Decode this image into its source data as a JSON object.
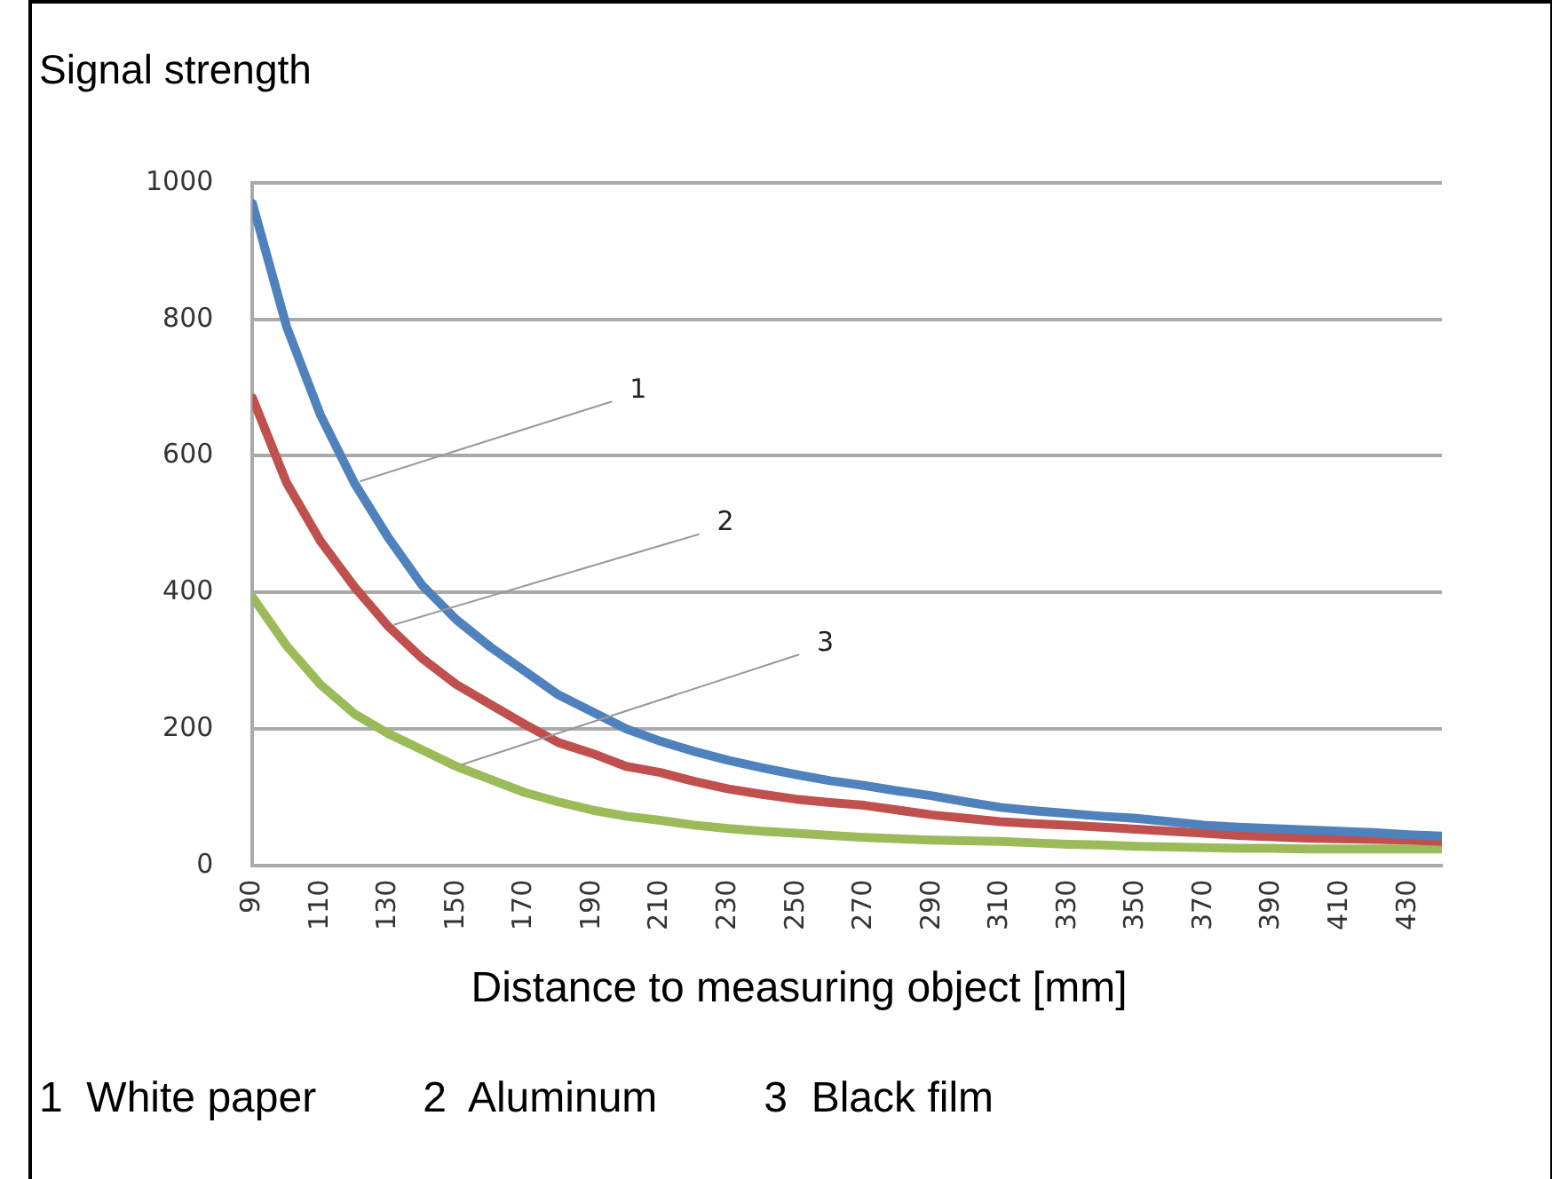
{
  "chart_data": {
    "type": "line",
    "ylabel": "Signal strength",
    "xlabel": "Distance to measuring object [mm]",
    "x": [
      90,
      100,
      110,
      120,
      130,
      140,
      150,
      160,
      170,
      180,
      190,
      200,
      210,
      220,
      230,
      240,
      250,
      260,
      270,
      280,
      290,
      300,
      310,
      320,
      330,
      340,
      350,
      360,
      370,
      380,
      390,
      400,
      410,
      420,
      430,
      440
    ],
    "series": [
      {
        "color": "#4f81bd",
        "values": [
          970,
          790,
          660,
          560,
          480,
          410,
          360,
          320,
          285,
          250,
          225,
          200,
          182,
          167,
          154,
          143,
          133,
          124,
          117,
          109,
          102,
          93,
          85,
          80,
          76,
          72,
          69,
          64,
          59,
          56,
          54,
          52,
          50,
          48,
          45,
          43
        ]
      },
      {
        "color": "#c0504d",
        "values": [
          685,
          561,
          475,
          408,
          350,
          303,
          265,
          236,
          207,
          180,
          164,
          145,
          136,
          123,
          112,
          104,
          97,
          92,
          88,
          81,
          74,
          69,
          64,
          61,
          59,
          56,
          53,
          50,
          47,
          44,
          42,
          40,
          39,
          38,
          37,
          35
        ]
      },
      {
        "color": "#9bbb59",
        "values": [
          393,
          322,
          265,
          222,
          193,
          169,
          145,
          126,
          107,
          93,
          81,
          72,
          66,
          59,
          54,
          50,
          47,
          44,
          41,
          39,
          37,
          36,
          35,
          33,
          31,
          30,
          28,
          27,
          26,
          25,
          25,
          24,
          24,
          24,
          24,
          24
        ]
      }
    ],
    "annotations": [
      {
        "text": "1",
        "x": 120,
        "y": 560
      },
      {
        "text": "2",
        "x": 130,
        "y": 350
      },
      {
        "text": "3",
        "x": 150,
        "y": 145
      },
      "1  White paper",
      "2  Aluminum",
      "3  Black film"
    ],
    "xlim": [
      90,
      440
    ],
    "xticks": [
      90,
      110,
      130,
      150,
      170,
      190,
      210,
      230,
      250,
      270,
      290,
      310,
      330,
      350,
      370,
      390,
      410,
      430
    ],
    "ylim": [
      0,
      1000
    ],
    "yticks": [
      0,
      200,
      400,
      600,
      800,
      1000
    ],
    "grid": "y",
    "marker": "none",
    "line_style": "solid"
  }
}
